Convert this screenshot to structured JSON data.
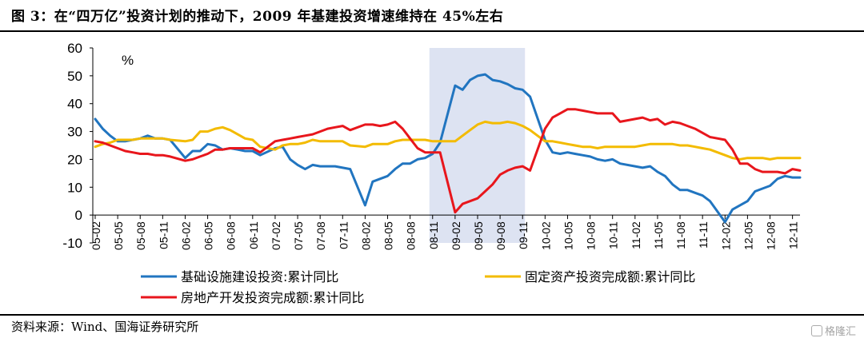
{
  "title": "图 3：在“四万亿”投资计划的推动下，2009 年基建投资增速维持在 45%左右",
  "source": "资料来源：Wind、国海证券研究所",
  "watermark": "格隆汇",
  "chart_data": {
    "type": "line",
    "unit_label": "%",
    "ylim": [
      -10,
      60
    ],
    "yticks": [
      -10,
      0,
      10,
      20,
      30,
      40,
      50,
      60
    ],
    "x_tick_labels": [
      "05-02",
      "05-05",
      "05-08",
      "05-11",
      "06-02",
      "06-05",
      "06-08",
      "06-11",
      "07-02",
      "07-05",
      "07-08",
      "07-11",
      "08-02",
      "08-05",
      "08-08",
      "08-11",
      "09-02",
      "09-05",
      "09-08",
      "09-11",
      "10-02",
      "10-05",
      "10-08",
      "10-11",
      "11-02",
      "11-05",
      "11-08",
      "11-11",
      "12-02",
      "12-05",
      "12-08",
      "12-11"
    ],
    "x_range": [
      "05-02",
      "12-12"
    ],
    "shaded_region": [
      "08-11",
      "09-11"
    ],
    "grid": false,
    "legend_position": "bottom",
    "series": [
      {
        "name": "基础设施建设投资:累计同比",
        "color": "#2175c0",
        "points": [
          [
            "05-02",
            34.5
          ],
          [
            "05-03",
            31
          ],
          [
            "05-04",
            28.5
          ],
          [
            "05-05",
            26.5
          ],
          [
            "05-06",
            26.5
          ],
          [
            "05-07",
            27
          ],
          [
            "05-08",
            27.5
          ],
          [
            "05-09",
            28.5
          ],
          [
            "05-10",
            27.5
          ],
          [
            "05-11",
            27.5
          ],
          [
            "05-12",
            27
          ],
          [
            "06-02",
            20.5
          ],
          [
            "06-03",
            23
          ],
          [
            "06-04",
            23
          ],
          [
            "06-05",
            25.5
          ],
          [
            "06-06",
            25
          ],
          [
            "06-07",
            23.5
          ],
          [
            "06-08",
            24
          ],
          [
            "06-09",
            23.5
          ],
          [
            "06-10",
            23
          ],
          [
            "06-11",
            23
          ],
          [
            "06-12",
            21.5
          ],
          [
            "07-02",
            24
          ],
          [
            "07-03",
            24.5
          ],
          [
            "07-04",
            20
          ],
          [
            "07-05",
            18
          ],
          [
            "07-06",
            16.5
          ],
          [
            "07-07",
            18
          ],
          [
            "07-08",
            17.5
          ],
          [
            "07-09",
            17.5
          ],
          [
            "07-10",
            17.5
          ],
          [
            "07-11",
            17
          ],
          [
            "07-12",
            16.5
          ],
          [
            "08-02",
            3.5
          ],
          [
            "08-03",
            12
          ],
          [
            "08-04",
            13
          ],
          [
            "08-05",
            14
          ],
          [
            "08-06",
            16.5
          ],
          [
            "08-07",
            18.5
          ],
          [
            "08-08",
            18.5
          ],
          [
            "08-09",
            20
          ],
          [
            "08-10",
            20.5
          ],
          [
            "08-11",
            22
          ],
          [
            "08-12",
            26
          ],
          [
            "09-02",
            46.5
          ],
          [
            "09-03",
            45
          ],
          [
            "09-04",
            48.5
          ],
          [
            "09-05",
            50
          ],
          [
            "09-06",
            50.5
          ],
          [
            "09-07",
            48.5
          ],
          [
            "09-08",
            48
          ],
          [
            "09-09",
            47
          ],
          [
            "09-10",
            45.5
          ],
          [
            "09-11",
            45
          ],
          [
            "09-12",
            42.5
          ],
          [
            "10-02",
            27
          ],
          [
            "10-03",
            22.5
          ],
          [
            "10-04",
            22
          ],
          [
            "10-05",
            22.5
          ],
          [
            "10-06",
            22
          ],
          [
            "10-07",
            21.5
          ],
          [
            "10-08",
            21
          ],
          [
            "10-09",
            20
          ],
          [
            "10-10",
            19.5
          ],
          [
            "10-11",
            20
          ],
          [
            "10-12",
            18.5
          ],
          [
            "11-02",
            17.5
          ],
          [
            "11-03",
            17
          ],
          [
            "11-04",
            17.5
          ],
          [
            "11-05",
            15.5
          ],
          [
            "11-06",
            14
          ],
          [
            "11-07",
            11
          ],
          [
            "11-08",
            9
          ],
          [
            "11-09",
            9
          ],
          [
            "11-10",
            8
          ],
          [
            "11-11",
            7
          ],
          [
            "11-12",
            5
          ],
          [
            "12-02",
            -2.5
          ],
          [
            "12-03",
            2
          ],
          [
            "12-04",
            3.5
          ],
          [
            "12-05",
            5
          ],
          [
            "12-06",
            8.5
          ],
          [
            "12-07",
            9.5
          ],
          [
            "12-08",
            10.5
          ],
          [
            "12-09",
            13
          ],
          [
            "12-10",
            14
          ],
          [
            "12-11",
            13.5
          ],
          [
            "12-12",
            13.5
          ]
        ]
      },
      {
        "name": "固定资产投资完成额:累计同比",
        "color": "#f3bb00",
        "points": [
          [
            "05-02",
            24.5
          ],
          [
            "05-03",
            25.5
          ],
          [
            "05-04",
            26
          ],
          [
            "05-05",
            27
          ],
          [
            "05-06",
            27
          ],
          [
            "05-07",
            27
          ],
          [
            "05-08",
            27.5
          ],
          [
            "05-09",
            27.5
          ],
          [
            "05-10",
            27.5
          ],
          [
            "05-11",
            27.5
          ],
          [
            "05-12",
            27
          ],
          [
            "06-02",
            26.5
          ],
          [
            "06-03",
            27
          ],
          [
            "06-04",
            30
          ],
          [
            "06-05",
            30
          ],
          [
            "06-06",
            31
          ],
          [
            "06-07",
            31.5
          ],
          [
            "06-08",
            30.5
          ],
          [
            "06-09",
            29
          ],
          [
            "06-10",
            27.5
          ],
          [
            "06-11",
            27
          ],
          [
            "06-12",
            24.5
          ],
          [
            "07-02",
            23.5
          ],
          [
            "07-03",
            25
          ],
          [
            "07-04",
            25.5
          ],
          [
            "07-05",
            25.5
          ],
          [
            "07-06",
            26
          ],
          [
            "07-07",
            27
          ],
          [
            "07-08",
            26.5
          ],
          [
            "07-09",
            26.5
          ],
          [
            "07-10",
            26.5
          ],
          [
            "07-11",
            26.5
          ],
          [
            "07-12",
            25
          ],
          [
            "08-02",
            24.5
          ],
          [
            "08-03",
            25.5
          ],
          [
            "08-04",
            25.5
          ],
          [
            "08-05",
            25.5
          ],
          [
            "08-06",
            26.5
          ],
          [
            "08-07",
            27
          ],
          [
            "08-08",
            27
          ],
          [
            "08-09",
            27
          ],
          [
            "08-10",
            27
          ],
          [
            "08-11",
            26.5
          ],
          [
            "08-12",
            26.5
          ],
          [
            "09-02",
            26.5
          ],
          [
            "09-03",
            28.5
          ],
          [
            "09-04",
            30.5
          ],
          [
            "09-05",
            32.5
          ],
          [
            "09-06",
            33.5
          ],
          [
            "09-07",
            33
          ],
          [
            "09-08",
            33
          ],
          [
            "09-09",
            33.5
          ],
          [
            "09-10",
            33
          ],
          [
            "09-11",
            32
          ],
          [
            "09-12",
            30.5
          ],
          [
            "10-02",
            26.5
          ],
          [
            "10-03",
            26.5
          ],
          [
            "10-04",
            26
          ],
          [
            "10-05",
            25.5
          ],
          [
            "10-06",
            25
          ],
          [
            "10-07",
            24.5
          ],
          [
            "10-08",
            24.5
          ],
          [
            "10-09",
            24
          ],
          [
            "10-10",
            24.5
          ],
          [
            "10-11",
            24.5
          ],
          [
            "10-12",
            24.5
          ],
          [
            "11-02",
            24.5
          ],
          [
            "11-03",
            25
          ],
          [
            "11-04",
            25.5
          ],
          [
            "11-05",
            25.5
          ],
          [
            "11-06",
            25.5
          ],
          [
            "11-07",
            25.5
          ],
          [
            "11-08",
            25
          ],
          [
            "11-09",
            25
          ],
          [
            "11-10",
            24.5
          ],
          [
            "11-11",
            24
          ],
          [
            "11-12",
            23.5
          ],
          [
            "12-02",
            21.5
          ],
          [
            "12-03",
            20.5
          ],
          [
            "12-04",
            20
          ],
          [
            "12-05",
            20.5
          ],
          [
            "12-06",
            20.5
          ],
          [
            "12-07",
            20.5
          ],
          [
            "12-08",
            20
          ],
          [
            "12-09",
            20.5
          ],
          [
            "12-10",
            20.5
          ],
          [
            "12-11",
            20.5
          ],
          [
            "12-12",
            20.5
          ]
        ]
      },
      {
        "name": "房地产开发投资完成额:累计同比",
        "color": "#e8161c",
        "points": [
          [
            "05-02",
            26.5
          ],
          [
            "05-03",
            26
          ],
          [
            "05-04",
            25
          ],
          [
            "05-05",
            24
          ],
          [
            "05-06",
            23
          ],
          [
            "05-07",
            22.5
          ],
          [
            "05-08",
            22
          ],
          [
            "05-09",
            22
          ],
          [
            "05-10",
            21.5
          ],
          [
            "05-11",
            21.5
          ],
          [
            "05-12",
            21
          ],
          [
            "06-02",
            19.5
          ],
          [
            "06-03",
            20
          ],
          [
            "06-04",
            21
          ],
          [
            "06-05",
            22
          ],
          [
            "06-06",
            23.5
          ],
          [
            "06-07",
            23.5
          ],
          [
            "06-08",
            24
          ],
          [
            "06-09",
            24
          ],
          [
            "06-10",
            24
          ],
          [
            "06-11",
            24
          ],
          [
            "06-12",
            22.5
          ],
          [
            "07-02",
            26.5
          ],
          [
            "07-03",
            27
          ],
          [
            "07-04",
            27.5
          ],
          [
            "07-05",
            28
          ],
          [
            "07-06",
            28.5
          ],
          [
            "07-07",
            29
          ],
          [
            "07-08",
            30
          ],
          [
            "07-09",
            31
          ],
          [
            "07-10",
            31.5
          ],
          [
            "07-11",
            32
          ],
          [
            "07-12",
            30.5
          ],
          [
            "08-02",
            32.5
          ],
          [
            "08-03",
            32.5
          ],
          [
            "08-04",
            32
          ],
          [
            "08-05",
            32.5
          ],
          [
            "08-06",
            33.5
          ],
          [
            "08-07",
            31
          ],
          [
            "08-08",
            27.5
          ],
          [
            "08-09",
            24
          ],
          [
            "08-10",
            22.5
          ],
          [
            "08-11",
            22.5
          ],
          [
            "08-12",
            22.5
          ],
          [
            "09-02",
            1
          ],
          [
            "09-03",
            4
          ],
          [
            "09-04",
            5
          ],
          [
            "09-05",
            6
          ],
          [
            "09-06",
            8.5
          ],
          [
            "09-07",
            11
          ],
          [
            "09-08",
            14.5
          ],
          [
            "09-09",
            16
          ],
          [
            "09-10",
            17
          ],
          [
            "09-11",
            17.5
          ],
          [
            "09-12",
            16
          ],
          [
            "10-02",
            31
          ],
          [
            "10-03",
            35
          ],
          [
            "10-04",
            36.5
          ],
          [
            "10-05",
            38
          ],
          [
            "10-06",
            38
          ],
          [
            "10-07",
            37.5
          ],
          [
            "10-08",
            37
          ],
          [
            "10-09",
            36.5
          ],
          [
            "10-10",
            36.5
          ],
          [
            "10-11",
            36.5
          ],
          [
            "10-12",
            33.5
          ],
          [
            "11-02",
            34.5
          ],
          [
            "11-03",
            35
          ],
          [
            "11-04",
            34
          ],
          [
            "11-05",
            34.5
          ],
          [
            "11-06",
            32.5
          ],
          [
            "11-07",
            33.5
          ],
          [
            "11-08",
            33
          ],
          [
            "11-09",
            32
          ],
          [
            "11-10",
            31
          ],
          [
            "11-11",
            29.5
          ],
          [
            "11-12",
            28
          ],
          [
            "12-02",
            27
          ],
          [
            "12-03",
            23.5
          ],
          [
            "12-04",
            18.5
          ],
          [
            "12-05",
            18.5
          ],
          [
            "12-06",
            16.5
          ],
          [
            "12-07",
            15.5
          ],
          [
            "12-08",
            15.5
          ],
          [
            "12-09",
            15.5
          ],
          [
            "12-10",
            15
          ],
          [
            "12-11",
            16.5
          ],
          [
            "12-12",
            16
          ]
        ]
      }
    ]
  }
}
